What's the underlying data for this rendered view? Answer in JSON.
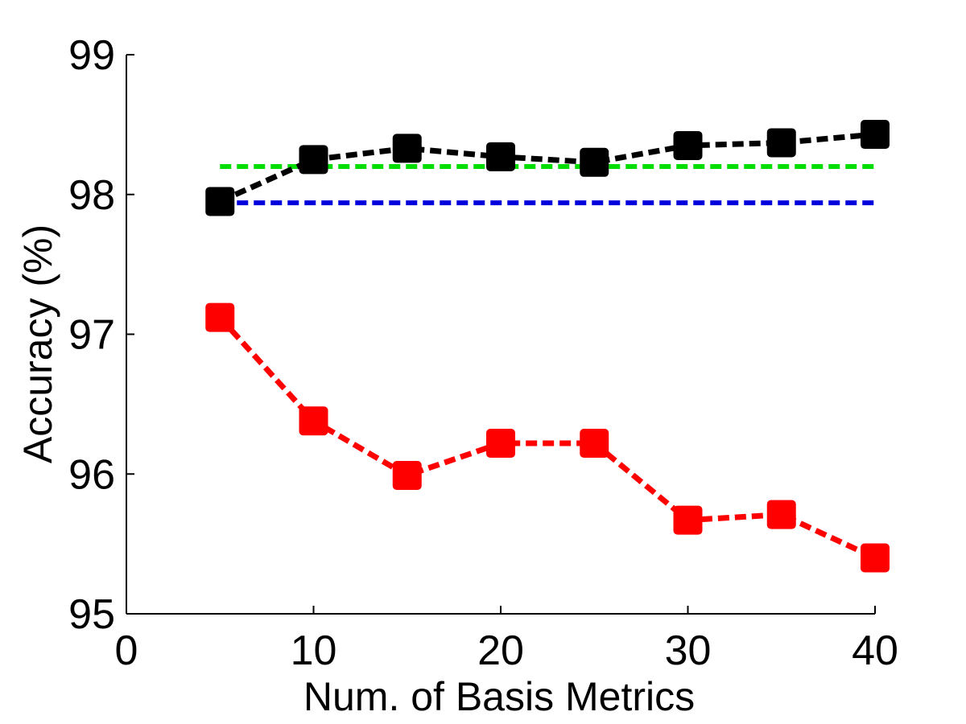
{
  "chart_data": {
    "type": "line",
    "title": "",
    "xlabel": "Num. of Basis Metrics",
    "ylabel": "Accuracy (%)",
    "xlim": [
      0,
      40
    ],
    "ylim": [
      95,
      99
    ],
    "xticks": [
      0,
      10,
      20,
      30,
      40
    ],
    "yticks": [
      95,
      96,
      97,
      98,
      99
    ],
    "xtick_labels": [
      "0",
      "10",
      "20",
      "30",
      "40"
    ],
    "ytick_labels": [
      "95",
      "96",
      "97",
      "98",
      "99"
    ],
    "grid": false,
    "series": [
      {
        "name": "black-series",
        "color": "#000000",
        "marker": "square",
        "line_style": "dashed",
        "x": [
          5,
          10,
          15,
          20,
          25,
          30,
          35,
          40
        ],
        "y": [
          97.95,
          98.25,
          98.33,
          98.27,
          98.23,
          98.35,
          98.37,
          98.43
        ]
      },
      {
        "name": "red-series",
        "color": "#ff0000",
        "marker": "square",
        "line_style": "dashed",
        "x": [
          5,
          10,
          15,
          20,
          25,
          30,
          35,
          40
        ],
        "y": [
          97.12,
          96.38,
          95.99,
          96.22,
          96.22,
          95.67,
          95.71,
          95.4
        ]
      }
    ],
    "reference_lines": [
      {
        "name": "green-baseline",
        "color": "#00dd00",
        "y": 98.2,
        "x_range": [
          5,
          40
        ]
      },
      {
        "name": "blue-baseline",
        "color": "#0000dd",
        "y": 97.94,
        "x_range": [
          5,
          40
        ]
      }
    ]
  }
}
